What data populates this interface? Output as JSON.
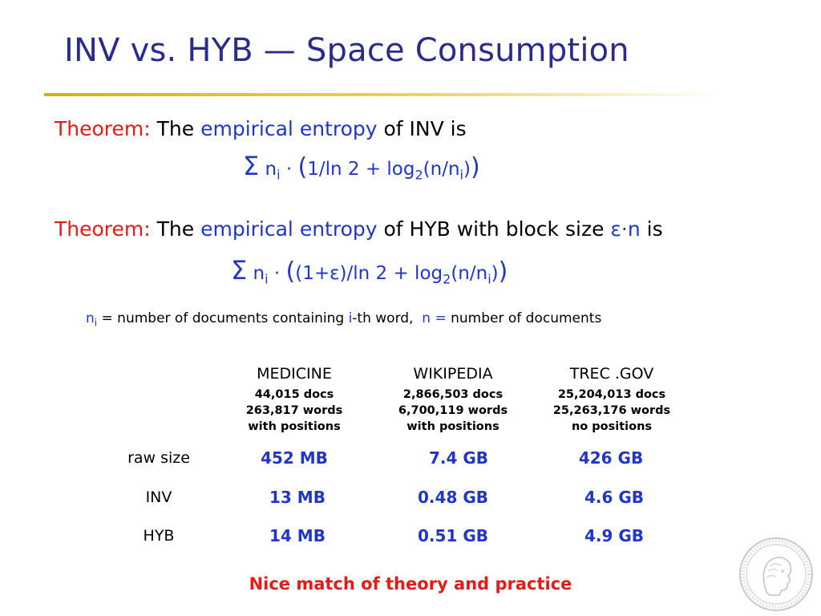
{
  "slide": {
    "title": "INV vs. HYB — Space Consumption",
    "theorem1": {
      "label": "Theorem:",
      "the": "The",
      "term": "empirical entropy",
      "rest": "of INV is"
    },
    "formula1": {
      "sigma": "Σ",
      "n": "n",
      "sub_i": "i",
      "dot": "·",
      "open_paren": "(",
      "body1": "1/ln 2 + log",
      "sub_2": "2",
      "body2": "(n/n",
      "sub_i2": "i",
      "close_inner": ")",
      "close_paren": ")"
    },
    "theorem2": {
      "label": "Theorem:",
      "the": "The",
      "term": "empirical entropy",
      "rest": "of HYB with block size",
      "param": "ε·n",
      "is": "is"
    },
    "formula2": {
      "sigma": "Σ",
      "n": "n",
      "sub_i": "i",
      "dot": "·",
      "open_paren": "(",
      "body1": "(1+ε)/ln 2 + log",
      "sub_2": "2",
      "body2": "(n/n",
      "sub_i2": "i",
      "close_inner": ")",
      "close_paren": ")"
    },
    "note": {
      "n": "n",
      "sub_i": "i",
      "text1": "= number of documents containing",
      "i": "i",
      "text2": "-th word,",
      "n2": "n =",
      "text3": "number of documents"
    },
    "table": {
      "columns": [
        {
          "name": "MEDICINE",
          "docs": "44,015 docs",
          "words": "263,817 words",
          "positions": "with positions"
        },
        {
          "name": "WIKIPEDIA",
          "docs": "2,866,503 docs",
          "words": "6,700,119 words",
          "positions": "with positions"
        },
        {
          "name": "TREC .GOV",
          "docs": "25,204,013 docs",
          "words": "25,263,176 words",
          "positions": "no positions"
        }
      ],
      "rows": [
        {
          "label": "raw size",
          "values": [
            "452 MB",
            "7.4 GB",
            "426 GB"
          ]
        },
        {
          "label": "INV",
          "values": [
            "13 MB",
            "0.48 GB",
            "4.6 GB"
          ]
        },
        {
          "label": "HYB",
          "values": [
            "14 MB",
            "0.51 GB",
            "4.9 GB"
          ]
        }
      ]
    },
    "conclusion": "Nice match of theory and practice"
  },
  "colors": {
    "title": "#2b2b8f",
    "accent_red": "#e41b17",
    "accent_blue": "#1f36c8",
    "rule_gold": "#d8b200"
  },
  "icons": {
    "seal": "institute-seal-icon"
  }
}
